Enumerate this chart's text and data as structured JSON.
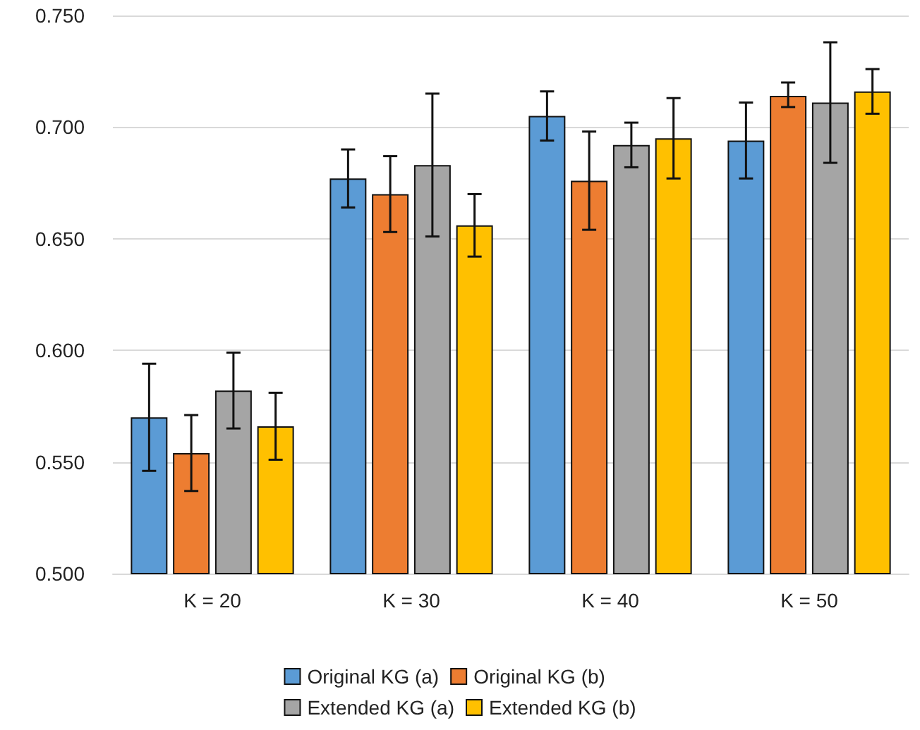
{
  "chart_data": {
    "type": "bar",
    "categories": [
      "K = 20",
      "K = 30",
      "K = 40",
      "K = 50"
    ],
    "series": [
      {
        "name": "Original KG (a)",
        "color": "#5b9bd5",
        "values": [
          0.57,
          0.677,
          0.705,
          0.694
        ],
        "errors": [
          [
            0.546,
            0.594
          ],
          [
            0.664,
            0.69
          ],
          [
            0.694,
            0.716
          ],
          [
            0.677,
            0.711
          ]
        ]
      },
      {
        "name": "Original KG (b)",
        "color": "#ed7d31",
        "values": [
          0.554,
          0.67,
          0.676,
          0.714
        ],
        "errors": [
          [
            0.537,
            0.571
          ],
          [
            0.653,
            0.687
          ],
          [
            0.654,
            0.698
          ],
          [
            0.709,
            0.72
          ]
        ]
      },
      {
        "name": "Extended KG (a)",
        "color": "#a5a5a5",
        "values": [
          0.582,
          0.683,
          0.692,
          0.711
        ],
        "errors": [
          [
            0.565,
            0.599
          ],
          [
            0.651,
            0.715
          ],
          [
            0.682,
            0.702
          ],
          [
            0.684,
            0.738
          ]
        ]
      },
      {
        "name": "Extended KG (b)",
        "color": "#ffc000",
        "values": [
          0.566,
          0.656,
          0.695,
          0.716
        ],
        "errors": [
          [
            0.551,
            0.581
          ],
          [
            0.642,
            0.67
          ],
          [
            0.677,
            0.713
          ],
          [
            0.706,
            0.726
          ]
        ]
      }
    ],
    "ylim": [
      0.5,
      0.75
    ],
    "yticks": [
      {
        "value": 0.5,
        "label": "0.500"
      },
      {
        "value": 0.55,
        "label": "0.550"
      },
      {
        "value": 0.6,
        "label": "0.600"
      },
      {
        "value": 0.65,
        "label": "0.650"
      },
      {
        "value": 0.7,
        "label": "0.700"
      },
      {
        "value": 0.75,
        "label": "0.750"
      }
    ],
    "grid": "y",
    "legend": "bottom"
  }
}
